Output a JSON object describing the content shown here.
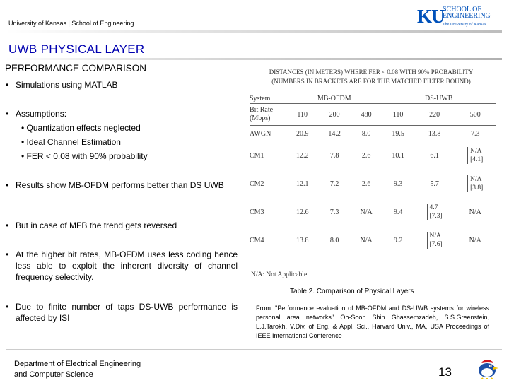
{
  "header": {
    "text": "University of Kansas | School of Engineering",
    "logo": {
      "ku": "KU",
      "school": "SCHOOL OF",
      "engineering": "ENGINEERING",
      "univ": "The University of Kansas"
    }
  },
  "slide": {
    "title": "UWB PHYSICAL LAYER",
    "section": "PERFORMANCE COMPARISON",
    "bullets": {
      "simulations": "Simulations using MATLAB",
      "assumptions": "Assumptions:",
      "sub": [
        "Quantization effects neglected",
        "Ideal Channel Estimation",
        "FER < 0.08 with 90% probability"
      ],
      "results": "Results show MB-OFDM performs better than DS UWB",
      "mfb": "But in case of MFB the trend gets reversed",
      "higher_bit": "At the higher bit rates, MB-OFDM uses less coding hence less able to exploit the inherent diversity of channel frequency selectivity.",
      "taps": "Due to finite number of taps DS-UWB performance is affected by ISI"
    }
  },
  "table": {
    "caption_line1": "DISTANCES (IN METERS) WHERE FER < 0.08 WITH 90% PROBABILITY",
    "caption_line2": "(NUMBERS IN BRACKETS ARE FOR THE MATCHED FILTER BOUND)",
    "header": {
      "system": "System",
      "mb": "MB-OFDM",
      "ds": "DS-UWB"
    },
    "rate_label_1": "Bit Rate",
    "rate_label_2": "(Mbps)",
    "rates": [
      "110",
      "200",
      "480",
      "110",
      "220",
      "500"
    ],
    "rows": [
      {
        "name": "AWGN",
        "values": [
          "20.9",
          "14.2",
          "8.0",
          "19.5",
          "13.8",
          "7.3"
        ]
      },
      {
        "name": "CM1",
        "values": [
          "12.2",
          "7.8",
          "2.6",
          "10.1",
          "6.1",
          ""
        ],
        "last_a": "N/A",
        "last_b": "[4.1]"
      },
      {
        "name": "CM2",
        "values": [
          "12.1",
          "7.2",
          "2.6",
          "9.3",
          "5.7",
          ""
        ],
        "last_a": "N/A",
        "last_b": "[3.8]"
      },
      {
        "name": "CM3",
        "values": [
          "12.6",
          "7.3",
          "N/A",
          "9.4",
          "",
          "N/A"
        ],
        "fifth_a": "4.7",
        "fifth_b": "[7.3]"
      },
      {
        "name": "CM4",
        "values": [
          "13.8",
          "8.0",
          "N/A",
          "9.2",
          "",
          "N/A"
        ],
        "fifth_a": "N/A",
        "fifth_b": "[7.6]"
      }
    ],
    "footnote": "N/A: Not Applicable.",
    "label": "Table 2. Comparison of Physical Layers",
    "source": "From: \"Performance evaluation of MB-OFDM and DS-UWB systems for wireless personal area networks\" Oh-Soon Shin Ghassemzadeh, S.S.Greenstein, L.J.Tarokh, V.Div. of Eng. & Appl. Sci., Harvard Univ., MA, USA Proceedings of IEEE International Conference"
  },
  "footer": {
    "dept_line1": "Department of Electrical Engineering",
    "dept_line2": "and Computer Science",
    "page": "13"
  }
}
